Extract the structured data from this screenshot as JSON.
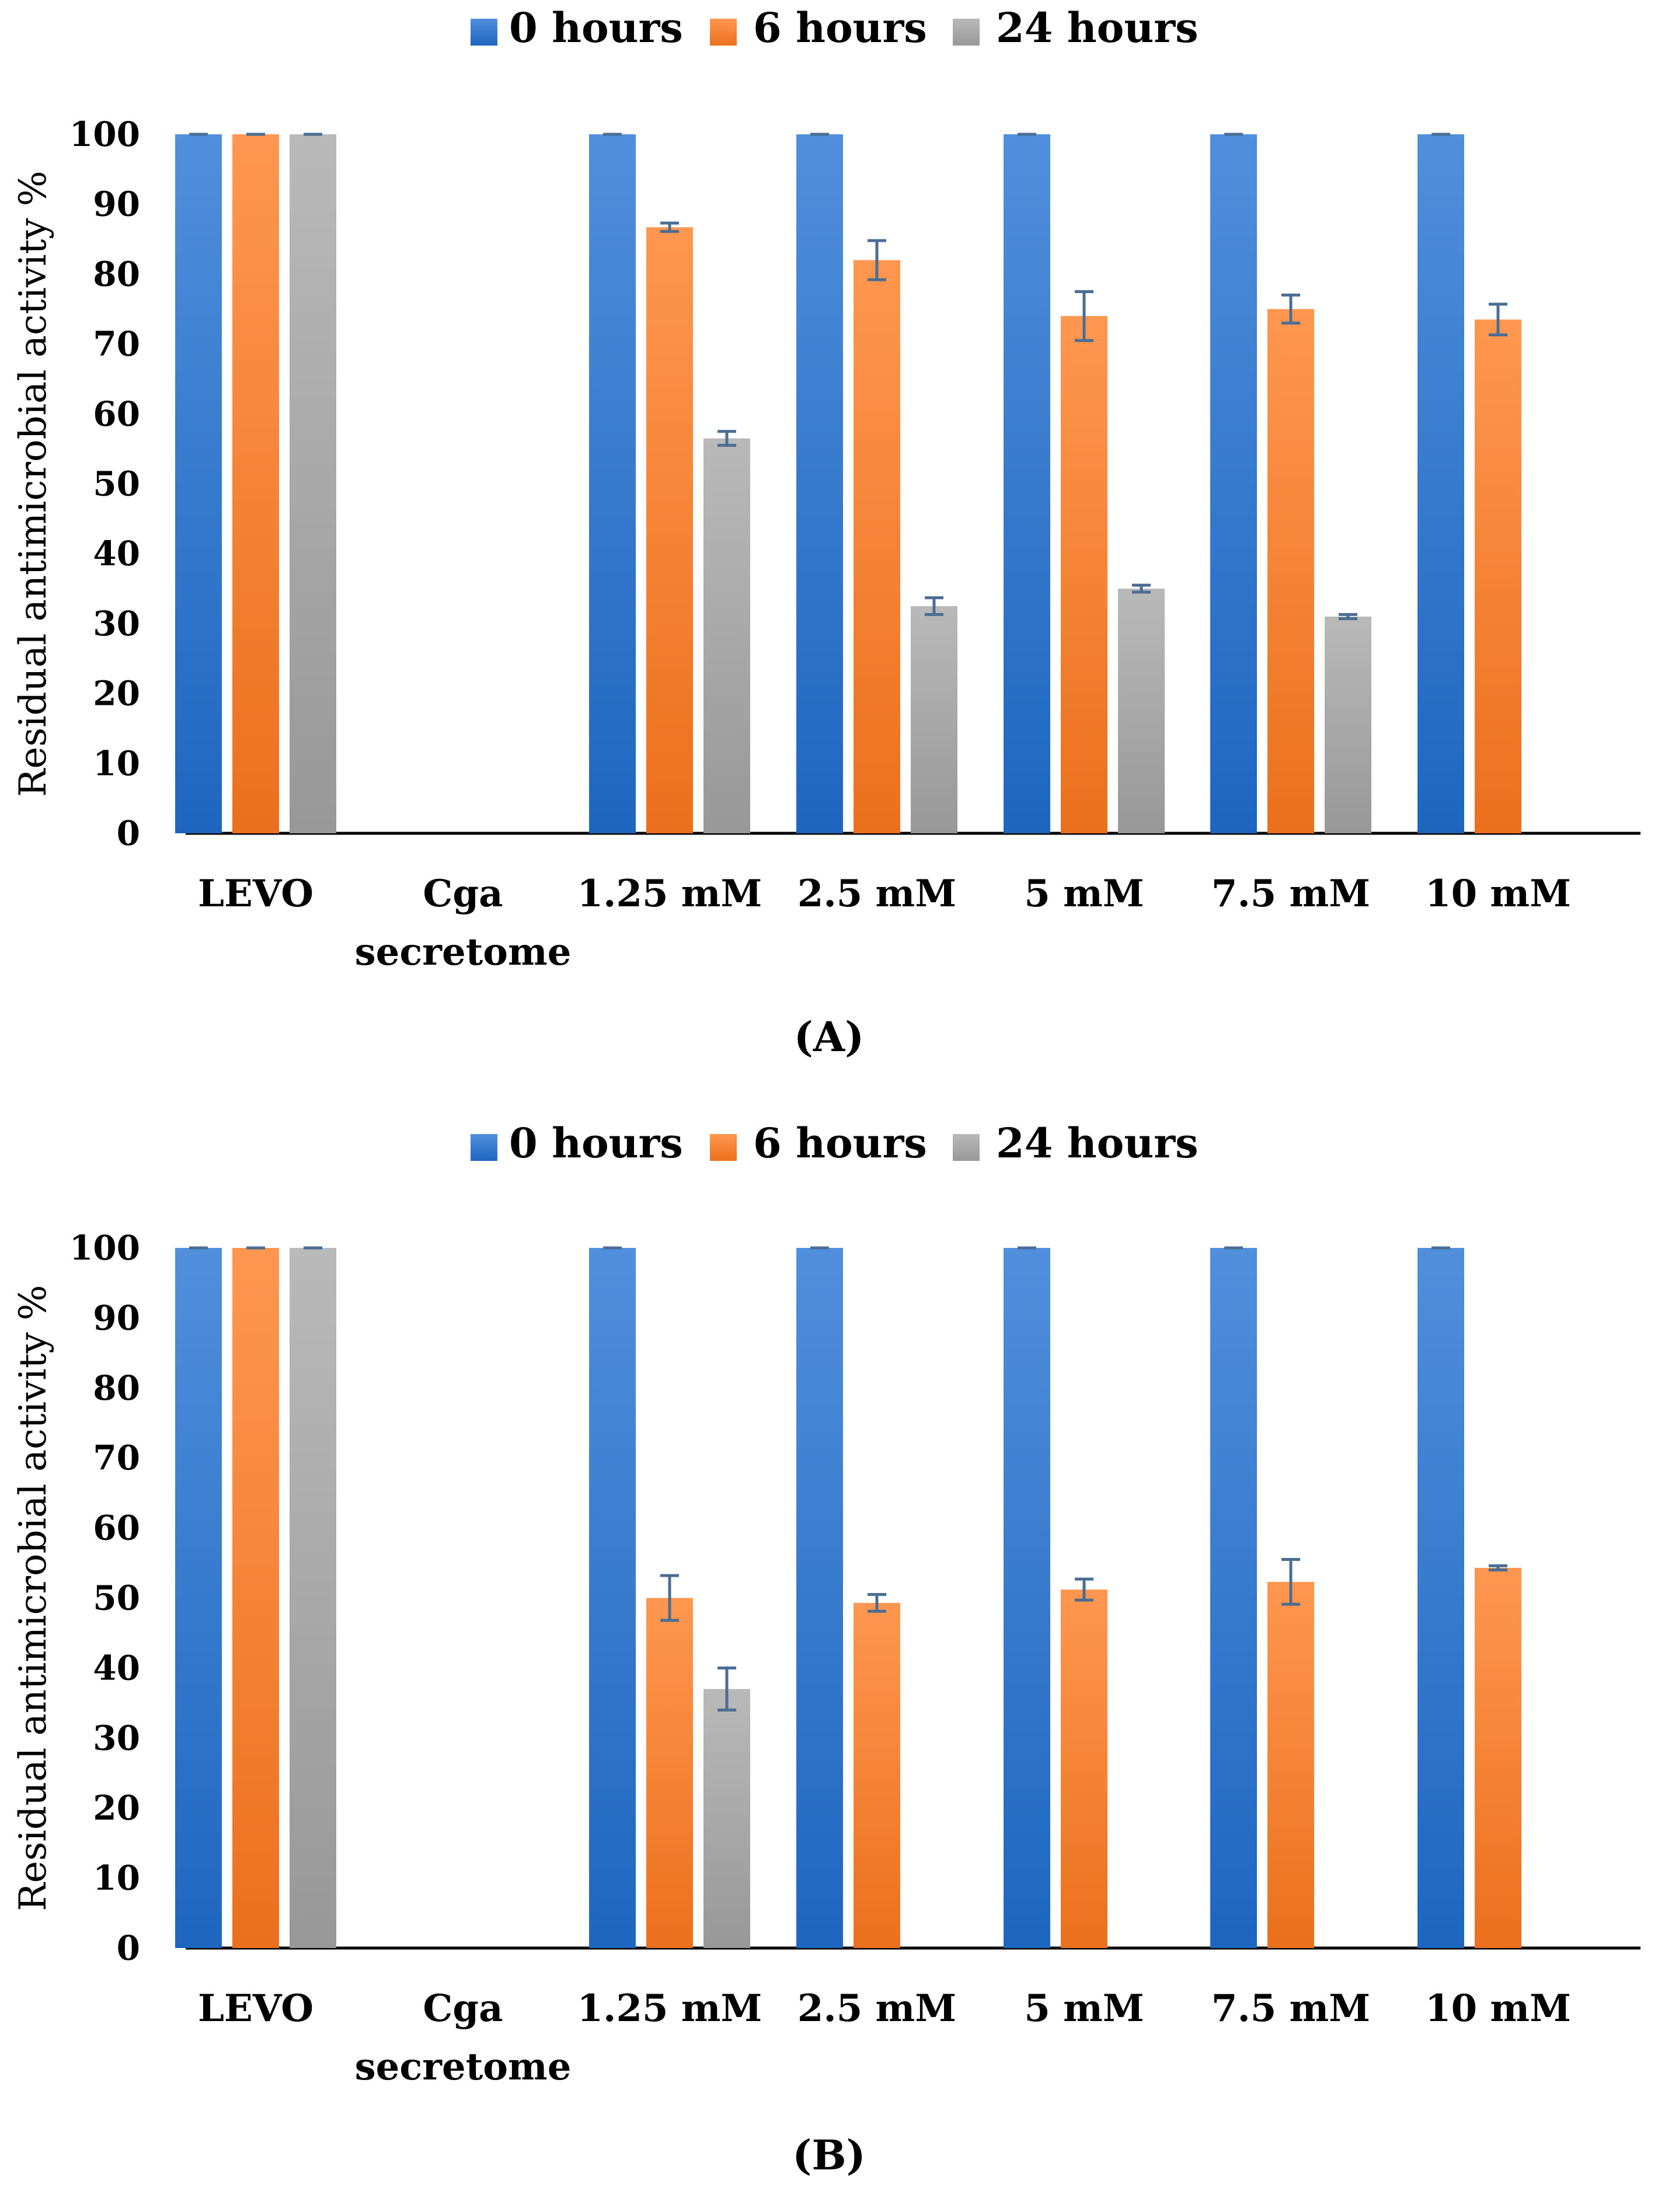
{
  "chart_data": [
    {
      "type": "bar",
      "panel_label": "(A)",
      "title": "",
      "xlabel": "",
      "ylabel": "Residual antimicrobial activity %",
      "ylim": [
        0,
        100
      ],
      "yticks": [
        "0",
        "10",
        "20",
        "30",
        "40",
        "50",
        "60",
        "70",
        "80",
        "90",
        "100"
      ],
      "legend_position": "top",
      "categories": [
        [
          "LEVO"
        ],
        [
          "Cga",
          "secretome"
        ],
        [
          "1.25 mM"
        ],
        [
          "2.5 mM"
        ],
        [
          "5 mM"
        ],
        [
          "7.5 mM"
        ],
        [
          "10 mM"
        ]
      ],
      "series": [
        {
          "name": "0 hours",
          "color": "#1f6fd1",
          "values": [
            100,
            0,
            100,
            100,
            100,
            100,
            100
          ],
          "errors": [
            0,
            0,
            0,
            0,
            0,
            0,
            0
          ]
        },
        {
          "name": "6 hours",
          "color": "#ff7a1f",
          "values": [
            100,
            0,
            86.7,
            82,
            74,
            75,
            73.5
          ],
          "errors": [
            0,
            0,
            0.6,
            2.8,
            3.5,
            2,
            2.2
          ]
        },
        {
          "name": "24 hours",
          "color": "#a5a5a5",
          "values": [
            100,
            0,
            56.5,
            32.5,
            35,
            31,
            0
          ],
          "errors": [
            0,
            0,
            1,
            1.2,
            0.5,
            0.3,
            0
          ]
        }
      ]
    },
    {
      "type": "bar",
      "panel_label": "(B)",
      "title": "",
      "xlabel": "",
      "ylabel": "Residual antimicrobial activity %",
      "ylim": [
        0,
        100
      ],
      "yticks": [
        "0",
        "10",
        "20",
        "30",
        "40",
        "50",
        "60",
        "70",
        "80",
        "90",
        "100"
      ],
      "legend_position": "top",
      "categories": [
        [
          "LEVO"
        ],
        [
          "Cga",
          "secretome"
        ],
        [
          "1.25 mM"
        ],
        [
          "2.5 mM"
        ],
        [
          "5 mM"
        ],
        [
          "7.5 mM"
        ],
        [
          "10 mM"
        ]
      ],
      "series": [
        {
          "name": "0 hours",
          "color": "#1f6fd1",
          "values": [
            100,
            0,
            100,
            100,
            100,
            100,
            100
          ],
          "errors": [
            0,
            0,
            0,
            0,
            0,
            0,
            0
          ]
        },
        {
          "name": "6 hours",
          "color": "#ff7a1f",
          "values": [
            100,
            0,
            50,
            49.3,
            51.2,
            52.3,
            54.3
          ],
          "errors": [
            0,
            0,
            3.2,
            1.2,
            1.5,
            3.2,
            0.3
          ]
        },
        {
          "name": "24 hours",
          "color": "#a5a5a5",
          "values": [
            100,
            0,
            37,
            0,
            0,
            0,
            0
          ],
          "errors": [
            0,
            0,
            3,
            0,
            0,
            0,
            0
          ]
        }
      ]
    }
  ]
}
